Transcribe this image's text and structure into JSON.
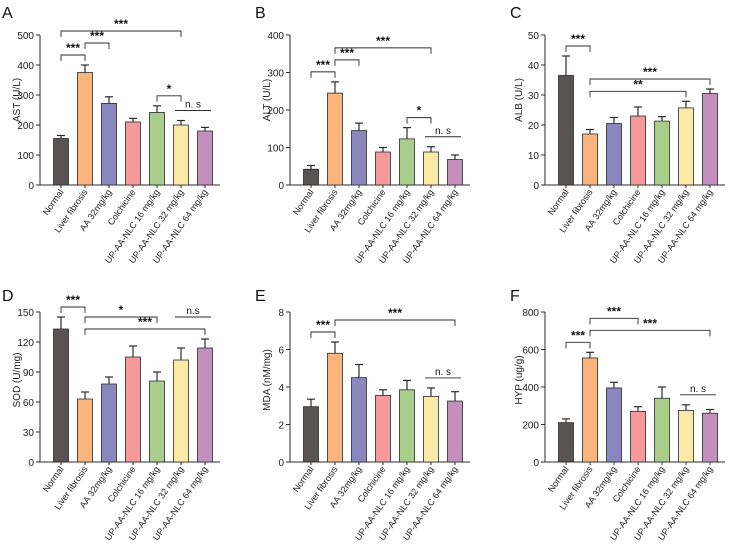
{
  "colors": {
    "group_fills": [
      "#595453",
      "#FBB57C",
      "#8A87BE",
      "#F5999B",
      "#A9CE8B",
      "#FBE9A8",
      "#C390BD"
    ],
    "stroke": "#2b2b2b"
  },
  "chart_data": [
    {
      "type": "bar",
      "panel_label": "A",
      "categories": [
        "Normal",
        "Liver fibrosis",
        "AA 32mg/kg",
        "Colchicine",
        "UP-AA-NLC 16 mg/kg",
        "UP-AA-NLC 32 mg/kg",
        "UP-AA-NLC 64 mg/kg"
      ],
      "values": [
        155,
        375,
        272,
        210,
        242,
        200,
        180
      ],
      "errors": [
        10,
        25,
        22,
        12,
        22,
        15,
        12
      ],
      "ylabel": "AST (U/L)",
      "ylim": [
        0,
        500
      ],
      "yticks": [
        "0",
        "100",
        "200",
        "300",
        "400",
        "500"
      ],
      "annotations": [
        {
          "from": 0,
          "to": 1,
          "text": "***"
        },
        {
          "from": 1,
          "to": 2,
          "text": "***"
        },
        {
          "from": 0,
          "to": 5,
          "text": "***"
        },
        {
          "from": 4,
          "to": 5,
          "text": "*"
        },
        {
          "from": 5,
          "to": 6,
          "text": "n. s"
        }
      ]
    },
    {
      "type": "bar",
      "panel_label": "B",
      "categories": [
        "Normal",
        "Liver fibrosis",
        "AA 32mg/kg",
        "Colchicine",
        "UP-AA-NLC 16 mg/kg",
        "UP-AA-NLC 32 mg/kg",
        "UP-AA-NLC 64 mg/kg"
      ],
      "values": [
        42,
        245,
        145,
        88,
        123,
        88,
        68
      ],
      "errors": [
        10,
        30,
        20,
        12,
        30,
        14,
        12
      ],
      "ylabel": "ALT (U/L)",
      "ylim": [
        0,
        400
      ],
      "yticks": [
        "0",
        "100",
        "200",
        "300",
        "400"
      ],
      "annotations": [
        {
          "from": 0,
          "to": 1,
          "text": "***"
        },
        {
          "from": 1,
          "to": 2,
          "text": "***"
        },
        {
          "from": 1,
          "to": 5,
          "text": "***"
        },
        {
          "from": 4,
          "to": 5,
          "text": "*"
        },
        {
          "from": 5,
          "to": 6,
          "text": "n. s"
        }
      ]
    },
    {
      "type": "bar",
      "panel_label": "C",
      "categories": [
        "Normal",
        "Liver fibrosis",
        "AA 32mg/kg",
        "Colchicine",
        "UP-AA-NLC 16 mg/kg",
        "UP-AA-NLC 32 mg/kg",
        "UP-AA-NLC 64 mg/kg"
      ],
      "values": [
        36.5,
        17,
        20.5,
        23,
        21.3,
        25.7,
        30.5
      ],
      "errors": [
        6.5,
        1.5,
        2,
        3,
        1.5,
        2.2,
        1.5
      ],
      "ylabel": "ALB (U/L)",
      "ylim": [
        0,
        50
      ],
      "yticks": [
        "0",
        "10",
        "20",
        "30",
        "40",
        "50"
      ],
      "annotations": [
        {
          "from": 0,
          "to": 1,
          "text": "***"
        },
        {
          "from": 1,
          "to": 6,
          "text": "***"
        },
        {
          "from": 1,
          "to": 5,
          "text": "**"
        }
      ]
    },
    {
      "type": "bar",
      "panel_label": "D",
      "categories": [
        "Normal",
        "Liver fibrosis",
        "AA 32mg/kg",
        "Colchicine",
        "UP-AA-NLC 16 mg/kg",
        "UP-AA-NLC 32 mg/kg",
        "UP-AA-NLC 64 mg/kg"
      ],
      "values": [
        133,
        63,
        78,
        105,
        81,
        102,
        114
      ],
      "errors": [
        12,
        7,
        7,
        11,
        9,
        12,
        9
      ],
      "ylabel": "SOD (U/mg)",
      "ylim": [
        0,
        150
      ],
      "yticks": [
        "0",
        "30",
        "60",
        "90",
        "120",
        "150"
      ],
      "annotations": [
        {
          "from": 0,
          "to": 1,
          "text": "***"
        },
        {
          "from": 1,
          "to": 6,
          "text": "***"
        },
        {
          "from": 1,
          "to": 4,
          "text": "*"
        },
        {
          "from": 5,
          "to": 6,
          "text": "n.s"
        }
      ]
    },
    {
      "type": "bar",
      "panel_label": "E",
      "categories": [
        "Normal",
        "Liver fibrosis",
        "AA 32mg/kg",
        "Colchicine",
        "UP-AA-NLC 16 mg/kg",
        "UP-AA-NLC 32 mg/kg",
        "UP-AA-NLC 64 mg/kg"
      ],
      "values": [
        2.95,
        5.8,
        4.5,
        3.55,
        3.85,
        3.5,
        3.25
      ],
      "errors": [
        0.4,
        0.6,
        0.7,
        0.3,
        0.5,
        0.45,
        0.5
      ],
      "ylabel": "MDA (nM/mg)",
      "ylim": [
        0,
        8
      ],
      "yticks": [
        "0",
        "2",
        "4",
        "6",
        "8"
      ],
      "annotations": [
        {
          "from": 0,
          "to": 1,
          "text": "***"
        },
        {
          "from": 1,
          "to": 6,
          "text": "***"
        },
        {
          "from": 5,
          "to": 6,
          "text": "n. s"
        }
      ]
    },
    {
      "type": "bar",
      "panel_label": "F",
      "categories": [
        "Normal",
        "Liver fibrosis",
        "AA 32mg/kg",
        "Colchicine",
        "UP-AA-NLC 16 mg/kg",
        "UP-AA-NLC 32 mg/kg",
        "UP-AA-NLC 64 mg/kg"
      ],
      "values": [
        210,
        555,
        395,
        270,
        340,
        275,
        260
      ],
      "errors": [
        20,
        30,
        30,
        25,
        60,
        30,
        20
      ],
      "ylabel": "HYP (ug/g)",
      "ylim": [
        0,
        800
      ],
      "yticks": [
        "0",
        "200",
        "400",
        "600",
        "800"
      ],
      "annotations": [
        {
          "from": 0,
          "to": 1,
          "text": "***"
        },
        {
          "from": 1,
          "to": 6,
          "text": "***"
        },
        {
          "from": 1,
          "to": 3,
          "text": "***"
        },
        {
          "from": 5,
          "to": 6,
          "text": "n. s"
        }
      ]
    }
  ]
}
